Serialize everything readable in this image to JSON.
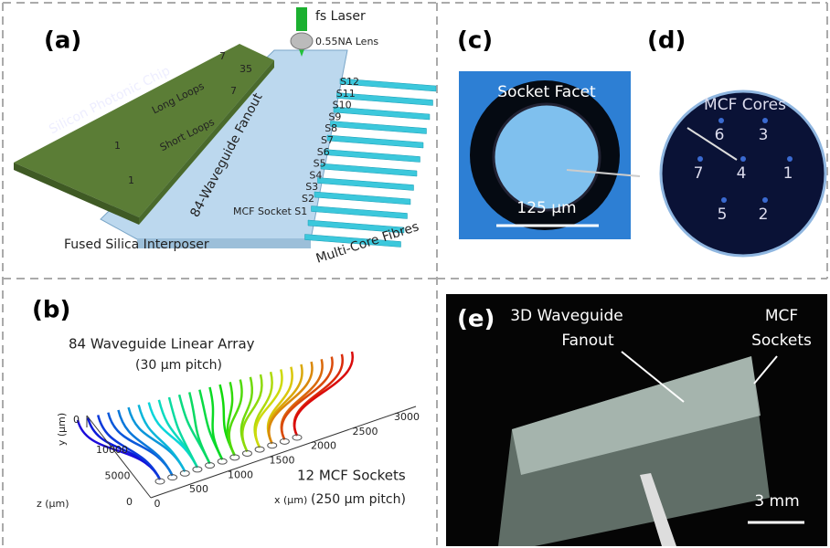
{
  "panel_labels": [
    "(a)",
    "(b)",
    "(c)",
    "(d)",
    "(e)"
  ],
  "a": {
    "chip": "Silicon Photonic Chip",
    "long_loops": "Long Loops",
    "short_loops": "Short Loops",
    "loop_count": 35,
    "loop_ends": [
      7,
      1,
      7,
      1
    ],
    "fanout": "84-Waveguide Fanout",
    "laser": "fs Laser",
    "lens": "0.55NA Lens",
    "sockets": [
      "S12",
      "S11",
      "S10",
      "S9",
      "S8",
      "S7",
      "S6",
      "S5",
      "S4",
      "S3",
      "S2"
    ],
    "first_socket": "MCF Socket S1",
    "interposer": "Fused Silica Interposer",
    "fibres": "Multi-Core Fibres"
  },
  "b": {
    "array": "84 Waveguide Linear Array",
    "array_pitch": "(30 µm pitch)",
    "sockets": "12 MCF Sockets",
    "sockets_pitch": "(250 µm pitch)",
    "x_label": "x (µm)",
    "y_label": "y (µm)",
    "z_label": "z (µm)",
    "xticks": [
      0,
      500,
      1000,
      1500,
      2000,
      2500,
      3000
    ],
    "yticks": [
      0
    ],
    "zticks": [
      10000,
      5000,
      0
    ]
  },
  "c": {
    "title": "Socket Facet",
    "scale": "125 µm"
  },
  "d": {
    "title": "MCF Cores",
    "cores": [
      6,
      3,
      7,
      4,
      1,
      5,
      2
    ]
  },
  "e": {
    "fanout_line1": "3D Waveguide",
    "fanout_line2": "Fanout",
    "sockets_line1": "MCF",
    "sockets_line2": "Sockets",
    "scale": "3 mm"
  }
}
